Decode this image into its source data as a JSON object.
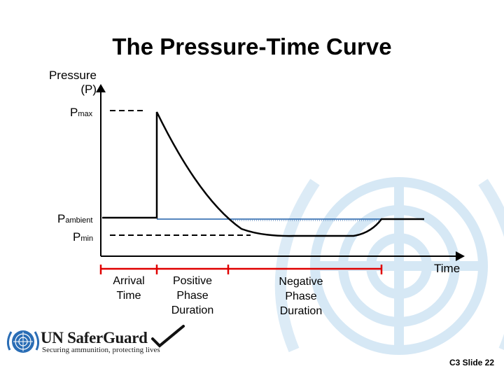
{
  "title": "The Pressure-Time Curve",
  "y_axis": {
    "label_line1": "Pressure",
    "label_line2": "(P)"
  },
  "x_axis": {
    "label": "Time"
  },
  "levels": {
    "pmax": {
      "base": "P",
      "sub": "max"
    },
    "pambient": {
      "base": "P",
      "sub": "ambient"
    },
    "pmin": {
      "base": "P",
      "sub": "min"
    }
  },
  "phases": {
    "arrival": [
      "Arrival",
      "Time"
    ],
    "positive": [
      "Positive",
      "Phase",
      "Duration"
    ],
    "negative": [
      "Negative",
      "Phase",
      "Duration"
    ]
  },
  "logo": {
    "name": "UN SaferGuard",
    "tagline": "Securing ammunition, protecting lives"
  },
  "footer": "C3 Slide 22",
  "colors": {
    "curve": "#000000",
    "ambient_line": "#1f5fa8",
    "bracket": "#e00000",
    "watermark": "#cfe3f3",
    "logo_blue": "#2a6db5"
  }
}
